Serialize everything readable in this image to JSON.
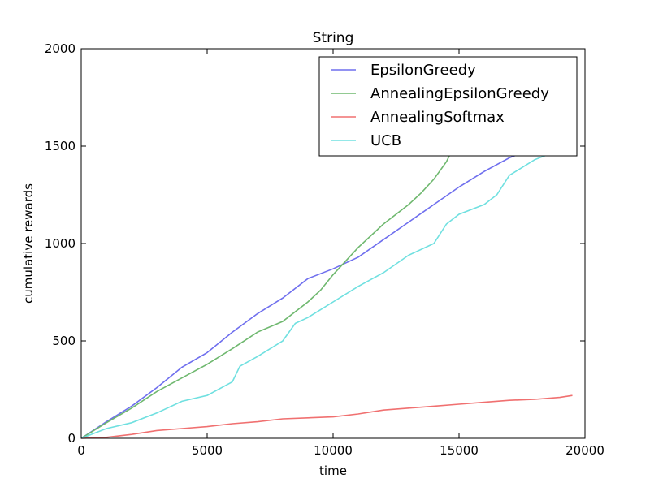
{
  "chart_data": {
    "type": "line",
    "title": "String",
    "xlabel": "time",
    "ylabel": "cumulative rewards",
    "xlim": [
      0,
      20000
    ],
    "ylim": [
      0,
      2000
    ],
    "xticks": [
      0,
      5000,
      10000,
      15000,
      20000
    ],
    "yticks": [
      0,
      500,
      1000,
      1500,
      2000
    ],
    "grid": false,
    "legend_position": "top-right",
    "series": [
      {
        "name": "EpsilonGreedy",
        "color": "#6f6fee",
        "x": [
          0,
          1000,
          2000,
          3000,
          4000,
          5000,
          6000,
          7000,
          8000,
          9000,
          10000,
          11000,
          12000,
          13000,
          14000,
          15000,
          16000,
          17000,
          18000,
          19000,
          19500
        ],
        "y": [
          0,
          85,
          165,
          260,
          365,
          440,
          545,
          640,
          720,
          820,
          870,
          930,
          1020,
          1110,
          1200,
          1290,
          1370,
          1440,
          1490,
          1570,
          1610
        ]
      },
      {
        "name": "AnnealingEpsilonGreedy",
        "color": "#6fb86f",
        "x": [
          0,
          1000,
          2000,
          3000,
          4000,
          5000,
          6000,
          7000,
          8000,
          9000,
          9500,
          10000,
          11000,
          12000,
          13000,
          13500,
          14000,
          14500,
          15000
        ],
        "y": [
          0,
          80,
          155,
          240,
          310,
          380,
          460,
          545,
          600,
          700,
          760,
          840,
          980,
          1100,
          1200,
          1260,
          1330,
          1420,
          1550
        ]
      },
      {
        "name": "AnnealingSoftmax",
        "color": "#f07070",
        "x": [
          0,
          1000,
          2000,
          3000,
          4000,
          5000,
          6000,
          7000,
          8000,
          9000,
          10000,
          11000,
          12000,
          13000,
          14000,
          15000,
          16000,
          17000,
          18000,
          19000,
          19500
        ],
        "y": [
          0,
          5,
          20,
          40,
          50,
          60,
          75,
          85,
          100,
          105,
          110,
          125,
          145,
          155,
          165,
          175,
          185,
          195,
          200,
          210,
          220
        ]
      },
      {
        "name": "UCB",
        "color": "#70e0e0",
        "x": [
          0,
          1000,
          2000,
          3000,
          4000,
          5000,
          6000,
          6300,
          7000,
          8000,
          8500,
          9000,
          10000,
          11000,
          12000,
          13000,
          14000,
          14500,
          15000,
          16000,
          16500,
          17000,
          18000,
          19000
        ],
        "y": [
          0,
          50,
          80,
          130,
          190,
          220,
          290,
          370,
          420,
          500,
          590,
          620,
          700,
          780,
          850,
          940,
          1000,
          1100,
          1150,
          1200,
          1250,
          1350,
          1430,
          1480
        ]
      }
    ]
  }
}
